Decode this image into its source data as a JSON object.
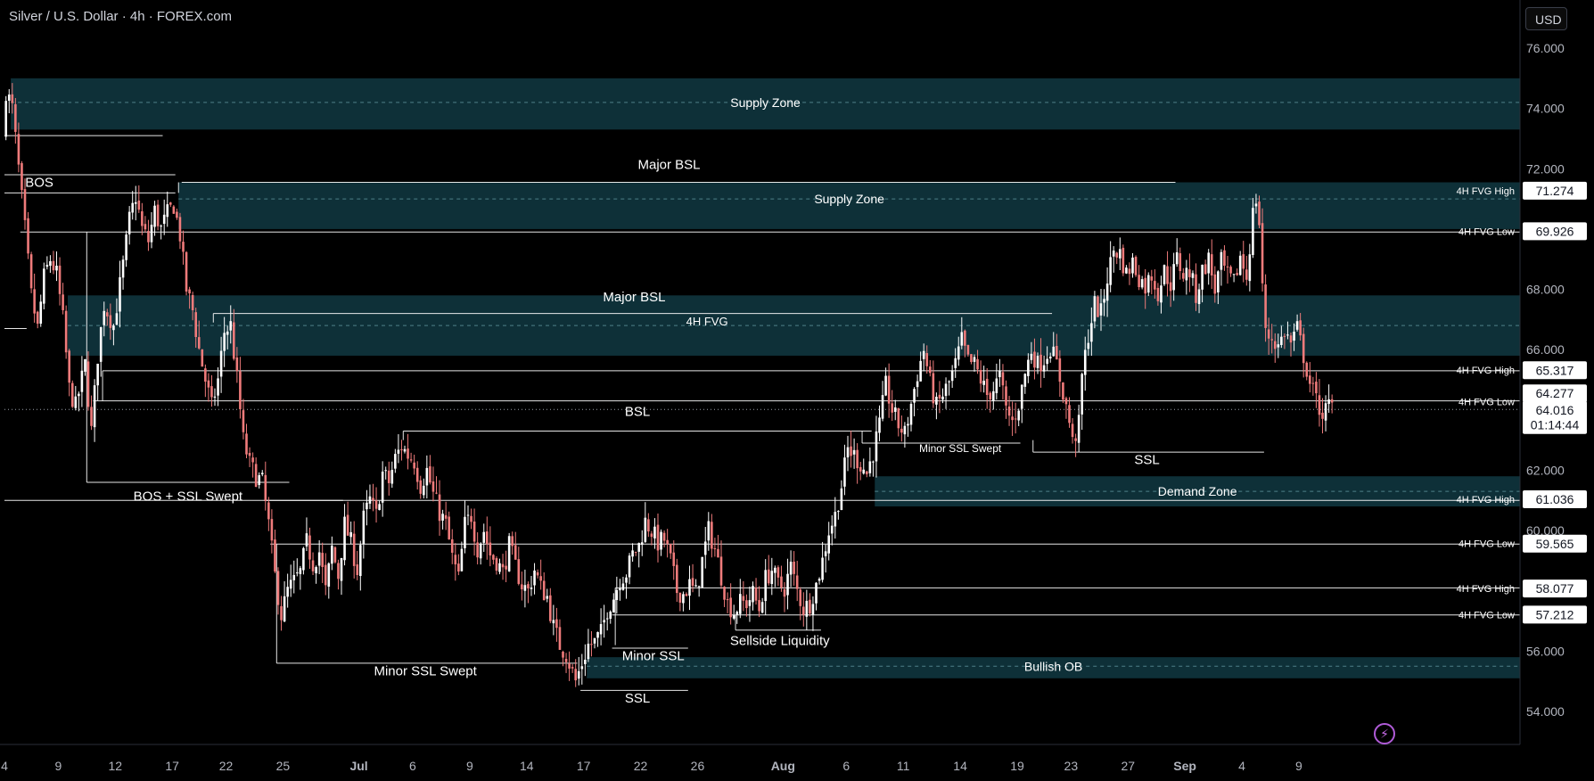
{
  "header": {
    "title": "Silver / U.S. Dollar · 4h · FOREX.com",
    "currency": "USD"
  },
  "colors": {
    "background": "#000000",
    "zone_fill": "#0e3038",
    "candle_up": "#ffffff",
    "candle_down": "#ef7b7b",
    "line": "#ffffff",
    "axis_text": "#b2b5be"
  },
  "icons": {
    "lightning": "lightning-icon"
  },
  "chart_data": {
    "type": "candlestick",
    "title": "Silver / U.S. Dollar · 4h · FOREX.com",
    "ylim": [
      53.0,
      77.0
    ],
    "y_ticks": [
      54,
      56,
      58,
      60,
      62,
      64,
      66,
      68,
      70,
      72,
      74,
      76
    ],
    "y_tick_labels": [
      "54.000",
      "56.000",
      "58.000",
      "60.000",
      "62.000",
      "64.000",
      "66.000",
      "68.000",
      "70.000",
      "72.000",
      "74.000",
      "76.000"
    ],
    "x_ticks": [
      {
        "label": "4",
        "i": 0
      },
      {
        "label": "9",
        "i": 17
      },
      {
        "label": "12",
        "i": 35
      },
      {
        "label": "17",
        "i": 53
      },
      {
        "label": "22",
        "i": 70
      },
      {
        "label": "25",
        "i": 88
      },
      {
        "label": "Jul",
        "i": 112
      },
      {
        "label": "6",
        "i": 129
      },
      {
        "label": "9",
        "i": 147
      },
      {
        "label": "14",
        "i": 165
      },
      {
        "label": "17",
        "i": 183
      },
      {
        "label": "22",
        "i": 201
      },
      {
        "label": "26",
        "i": 219
      },
      {
        "label": "Aug",
        "i": 246
      },
      {
        "label": "6",
        "i": 266
      },
      {
        "label": "11",
        "i": 284
      },
      {
        "label": "14",
        "i": 302
      },
      {
        "label": "19",
        "i": 320
      },
      {
        "label": "23",
        "i": 337
      },
      {
        "label": "27",
        "i": 355
      },
      {
        "label": "Sep",
        "i": 373
      },
      {
        "label": "4",
        "i": 391
      },
      {
        "label": "9",
        "i": 409
      }
    ],
    "x_tick_bold": [
      "Jul",
      "Aug",
      "Sep"
    ],
    "price_path": [
      [
        0,
        73.0
      ],
      [
        1,
        74.6
      ],
      [
        3,
        74.0
      ],
      [
        5,
        72.0
      ],
      [
        7,
        70.0
      ],
      [
        9,
        67.8
      ],
      [
        11,
        66.7
      ],
      [
        13,
        68.4
      ],
      [
        15,
        69.0
      ],
      [
        17,
        68.5
      ],
      [
        19,
        67.0
      ],
      [
        21,
        64.7
      ],
      [
        23,
        64.1
      ],
      [
        26,
        65.5
      ],
      [
        28,
        63.3
      ],
      [
        30,
        65.8
      ],
      [
        32,
        67.5
      ],
      [
        35,
        66.8
      ],
      [
        38,
        68.8
      ],
      [
        40,
        70.3
      ],
      [
        42,
        71.1
      ],
      [
        44,
        70.0
      ],
      [
        46,
        69.6
      ],
      [
        48,
        70.6
      ],
      [
        50,
        70.0
      ],
      [
        52,
        70.5
      ],
      [
        54,
        70.8
      ],
      [
        56,
        69.8
      ],
      [
        58,
        68.0
      ],
      [
        60,
        67.3
      ],
      [
        62,
        66.0
      ],
      [
        64,
        65.0
      ],
      [
        66,
        64.1
      ],
      [
        68,
        65.0
      ],
      [
        70,
        66.6
      ],
      [
        72,
        66.8
      ],
      [
        74,
        65.0
      ],
      [
        76,
        63.0
      ],
      [
        78,
        62.2
      ],
      [
        80,
        61.8
      ],
      [
        82,
        61.6
      ],
      [
        84,
        60.2
      ],
      [
        86,
        58.5
      ],
      [
        88,
        57.2
      ],
      [
        90,
        58.0
      ],
      [
        92,
        58.3
      ],
      [
        94,
        58.6
      ],
      [
        96,
        59.6
      ],
      [
        98,
        58.9
      ],
      [
        100,
        59.3
      ],
      [
        102,
        58.0
      ],
      [
        104,
        59.4
      ],
      [
        106,
        58.5
      ],
      [
        108,
        60.2
      ],
      [
        110,
        59.6
      ],
      [
        112,
        58.7
      ],
      [
        114,
        60.4
      ],
      [
        116,
        61.0
      ],
      [
        118,
        60.5
      ],
      [
        120,
        61.9
      ],
      [
        122,
        61.6
      ],
      [
        124,
        62.4
      ],
      [
        126,
        62.8
      ],
      [
        128,
        62.5
      ],
      [
        130,
        62.3
      ],
      [
        132,
        61.5
      ],
      [
        134,
        62.0
      ],
      [
        136,
        61.2
      ],
      [
        138,
        60.6
      ],
      [
        140,
        60.2
      ],
      [
        142,
        59.1
      ],
      [
        144,
        58.4
      ],
      [
        146,
        60.2
      ],
      [
        148,
        60.5
      ],
      [
        150,
        59.4
      ],
      [
        152,
        60.0
      ],
      [
        154,
        59.2
      ],
      [
        156,
        59.0
      ],
      [
        158,
        58.6
      ],
      [
        160,
        59.5
      ],
      [
        162,
        58.8
      ],
      [
        164,
        58.2
      ],
      [
        166,
        58.0
      ],
      [
        168,
        58.7
      ],
      [
        170,
        58.1
      ],
      [
        172,
        57.8
      ],
      [
        174,
        56.8
      ],
      [
        176,
        56.2
      ],
      [
        178,
        55.9
      ],
      [
        180,
        55.3
      ],
      [
        181,
        55.0
      ],
      [
        183,
        55.6
      ],
      [
        185,
        56.2
      ],
      [
        187,
        56.3
      ],
      [
        189,
        56.6
      ],
      [
        191,
        57.4
      ],
      [
        193,
        57.8
      ],
      [
        195,
        58.4
      ],
      [
        197,
        58.6
      ],
      [
        199,
        59.2
      ],
      [
        201,
        59.5
      ],
      [
        203,
        60.3
      ],
      [
        205,
        60.0
      ],
      [
        207,
        59.6
      ],
      [
        209,
        59.7
      ],
      [
        211,
        59.0
      ],
      [
        213,
        58.0
      ],
      [
        215,
        57.9
      ],
      [
        217,
        58.2
      ],
      [
        219,
        57.9
      ],
      [
        221,
        59.0
      ],
      [
        223,
        60.0
      ],
      [
        225,
        59.4
      ],
      [
        227,
        58.5
      ],
      [
        229,
        57.6
      ],
      [
        231,
        57.3
      ],
      [
        233,
        57.6
      ],
      [
        235,
        57.6
      ],
      [
        237,
        57.9
      ],
      [
        239,
        57.4
      ],
      [
        241,
        58.4
      ],
      [
        243,
        58.7
      ],
      [
        245,
        58.2
      ],
      [
        247,
        58.1
      ],
      [
        249,
        58.8
      ],
      [
        251,
        58.0
      ],
      [
        253,
        57.4
      ],
      [
        255,
        57.6
      ],
      [
        257,
        58.2
      ],
      [
        259,
        59.0
      ],
      [
        261,
        60.0
      ],
      [
        263,
        60.5
      ],
      [
        265,
        61.5
      ],
      [
        267,
        62.7
      ],
      [
        269,
        62.5
      ],
      [
        271,
        62.2
      ],
      [
        273,
        61.9
      ],
      [
        275,
        62.6
      ],
      [
        277,
        63.5
      ],
      [
        279,
        64.8
      ],
      [
        281,
        64.0
      ],
      [
        283,
        63.5
      ],
      [
        285,
        63.2
      ],
      [
        287,
        64.2
      ],
      [
        289,
        65.2
      ],
      [
        291,
        66.0
      ],
      [
        293,
        64.9
      ],
      [
        295,
        64.1
      ],
      [
        297,
        64.5
      ],
      [
        299,
        64.9
      ],
      [
        301,
        65.5
      ],
      [
        303,
        66.3
      ],
      [
        305,
        65.6
      ],
      [
        307,
        65.5
      ],
      [
        309,
        65.0
      ],
      [
        311,
        64.5
      ],
      [
        313,
        64.7
      ],
      [
        315,
        65.1
      ],
      [
        317,
        64.0
      ],
      [
        319,
        63.6
      ],
      [
        321,
        64.2
      ],
      [
        323,
        65.2
      ],
      [
        325,
        66.0
      ],
      [
        327,
        65.5
      ],
      [
        329,
        65.7
      ],
      [
        331,
        66.1
      ],
      [
        333,
        65.5
      ],
      [
        335,
        64.6
      ],
      [
        337,
        63.6
      ],
      [
        338,
        62.9
      ],
      [
        340,
        63.5
      ],
      [
        341,
        65.1
      ],
      [
        343,
        66.5
      ],
      [
        345,
        67.5
      ],
      [
        347,
        67.2
      ],
      [
        349,
        68.4
      ],
      [
        351,
        69.3
      ],
      [
        353,
        69.2
      ],
      [
        355,
        68.5
      ],
      [
        357,
        68.9
      ],
      [
        359,
        68.4
      ],
      [
        361,
        68.1
      ],
      [
        363,
        68.5
      ],
      [
        365,
        67.9
      ],
      [
        367,
        68.6
      ],
      [
        369,
        68.2
      ],
      [
        371,
        69.0
      ],
      [
        373,
        68.5
      ],
      [
        375,
        68.6
      ],
      [
        377,
        67.8
      ],
      [
        379,
        68.6
      ],
      [
        381,
        69.0
      ],
      [
        383,
        68.0
      ],
      [
        385,
        68.9
      ],
      [
        387,
        68.4
      ],
      [
        389,
        68.2
      ],
      [
        391,
        69.1
      ],
      [
        393,
        68.4
      ],
      [
        395,
        70.5
      ],
      [
        396,
        71.0
      ],
      [
        397,
        70.2
      ],
      [
        398,
        68.2
      ],
      [
        399,
        66.5
      ],
      [
        401,
        66.4
      ],
      [
        403,
        66.1
      ],
      [
        405,
        66.6
      ],
      [
        407,
        66.2
      ],
      [
        409,
        66.7
      ],
      [
        411,
        65.8
      ],
      [
        413,
        64.9
      ],
      [
        415,
        64.3
      ],
      [
        417,
        63.9
      ],
      [
        419,
        64.1
      ]
    ],
    "zones": [
      {
        "label": "Supply Zone",
        "from_i": 2,
        "to_end": true,
        "top": 75.0,
        "bottom": 73.3,
        "mid": 74.2
      },
      {
        "label": "Supply Zone",
        "from_i": 55,
        "to_end": true,
        "top": 71.55,
        "bottom": 70.0,
        "mid": 71.0
      },
      {
        "label": "",
        "from_i": 20,
        "to_end": true,
        "top": 67.8,
        "bottom": 65.8,
        "mid": 66.8
      },
      {
        "label": "Demand Zone",
        "from_i": 275,
        "to_end": true,
        "top": 61.8,
        "bottom": 60.8,
        "mid": 61.3
      },
      {
        "label": "Bullish OB",
        "from_i": 184,
        "to_end": true,
        "top": 55.8,
        "bottom": 55.1,
        "mid": 55.5
      }
    ],
    "levels": [
      {
        "from_i": 0,
        "to_i": 50,
        "y": 73.1
      },
      {
        "from_i": 0,
        "to_i": 54,
        "y": 71.8
      },
      {
        "from_i": 0,
        "to_i": 54,
        "y": 71.2
      },
      {
        "from_i": 56,
        "to_i": 370,
        "y": 71.55
      },
      {
        "from_i": 5,
        "to_end": true,
        "y": 69.9
      },
      {
        "from_i": 0,
        "to_i": 7,
        "y": 66.7
      },
      {
        "from_i": 66,
        "to_i": 331,
        "y": 67.2
      },
      {
        "from_i": 31,
        "to_end": true,
        "y": 65.3
      },
      {
        "from_i": 28,
        "to_end": true,
        "y": 64.3
      },
      {
        "from_i": 126,
        "to_i": 274,
        "y": 63.3
      },
      {
        "from_i": 271,
        "to_i": 321,
        "y": 62.9
      },
      {
        "from_i": 325,
        "to_i": 398,
        "y": 62.6
      },
      {
        "from_i": 26,
        "to_i": 90,
        "y": 61.6
      },
      {
        "from_i": 0,
        "to_i": 107,
        "y": 61.0
      },
      {
        "from_i": 82,
        "to_end": true,
        "y": 61.0
      },
      {
        "from_i": 84,
        "to_end": true,
        "y": 59.55
      },
      {
        "from_i": 193,
        "to_end": true,
        "y": 58.1
      },
      {
        "from_i": 192,
        "to_end": true,
        "y": 57.2
      },
      {
        "from_i": 231,
        "to_i": 258,
        "y": 56.7
      },
      {
        "from_i": 192,
        "to_i": 216,
        "y": 56.1
      },
      {
        "from_i": 86,
        "to_i": 181,
        "y": 55.6
      },
      {
        "from_i": 182,
        "to_i": 216,
        "y": 54.7
      }
    ],
    "v_lines": [
      {
        "i": 26,
        "from": 69.9,
        "to": 61.6
      },
      {
        "i": 31,
        "from": 65.3,
        "to": 64.3
      },
      {
        "i": 55,
        "from": 71.55,
        "to": 71.2
      },
      {
        "i": 66,
        "from": 67.2,
        "to": 66.9
      },
      {
        "i": 126,
        "from": 63.3,
        "to": 63.0
      },
      {
        "i": 86,
        "from": 59.55,
        "to": 55.6
      },
      {
        "i": 193,
        "from": 58.1,
        "to": 56.2
      },
      {
        "i": 231,
        "from": 57.2,
        "to": 56.7
      },
      {
        "i": 271,
        "from": 63.3,
        "to": 62.9
      },
      {
        "i": 325,
        "from": 63.0,
        "to": 62.6
      }
    ],
    "annotations": [
      {
        "text": "Major BSL",
        "i": 210,
        "y": 72.0,
        "size": 15
      },
      {
        "text": "BOS",
        "i": 11,
        "y": 71.4,
        "size": 15
      },
      {
        "text": "Major BSL",
        "i": 199,
        "y": 67.6,
        "size": 15
      },
      {
        "text": "4H FVG",
        "i": 222,
        "y": 66.8,
        "size": 13
      },
      {
        "text": "BSL",
        "i": 200,
        "y": 63.8,
        "size": 15
      },
      {
        "text": "Minor SSL Swept",
        "i": 302,
        "y": 62.6,
        "size": 12
      },
      {
        "text": "SSL",
        "i": 361,
        "y": 62.2,
        "size": 15
      },
      {
        "text": "BOS + SSL Swept",
        "i": 58,
        "y": 61.0,
        "size": 15
      },
      {
        "text": "Minor SSL Swept",
        "i": 133,
        "y": 55.2,
        "size": 15
      },
      {
        "text": "Minor SSL",
        "i": 205,
        "y": 55.7,
        "size": 15
      },
      {
        "text": "Sellside Liquidity",
        "i": 245,
        "y": 56.2,
        "size": 15
      },
      {
        "text": "SSL",
        "i": 200,
        "y": 54.3,
        "size": 15
      }
    ],
    "level_labels": [
      {
        "text": "4H FVG High",
        "y": 71.27
      },
      {
        "text": "4H FVG Low",
        "y": 69.93
      },
      {
        "text": "4H FVG High",
        "y": 65.32
      },
      {
        "text": "4H FVG Low",
        "y": 64.28
      },
      {
        "text": "4H FVG High",
        "y": 61.04
      },
      {
        "text": "4H FVG Low",
        "y": 59.57
      },
      {
        "text": "4H FVG High",
        "y": 58.08
      },
      {
        "text": "4H FVG Low",
        "y": 57.21
      }
    ],
    "price_tags": [
      {
        "text": "71.274",
        "y": 71.274
      },
      {
        "text": "69.926",
        "y": 69.926
      },
      {
        "text": "65.317",
        "y": 65.317
      },
      {
        "text": "64.277",
        "y": 64.55
      },
      {
        "text": "64.016",
        "y": 64.0
      },
      {
        "text": "01:14:44",
        "y": 63.5
      },
      {
        "text": "61.036",
        "y": 61.036
      },
      {
        "text": "59.565",
        "y": 59.565
      },
      {
        "text": "58.077",
        "y": 58.077
      },
      {
        "text": "57.212",
        "y": 57.212
      }
    ],
    "current_price": 64.016
  }
}
